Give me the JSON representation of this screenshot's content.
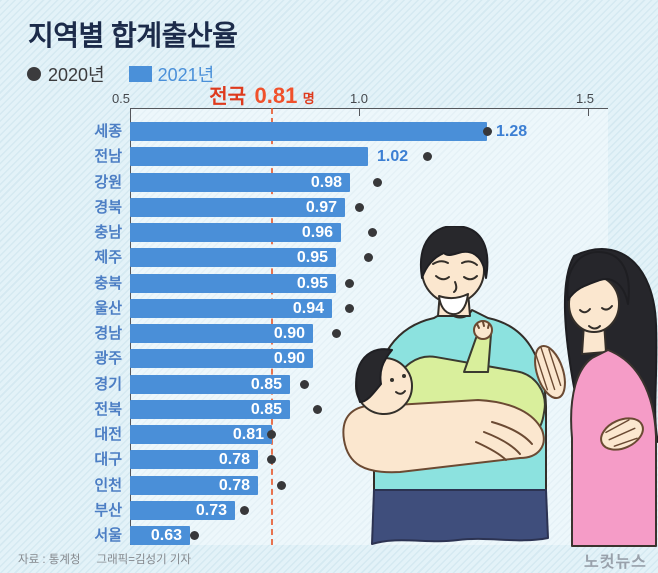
{
  "title": "지역별 합계출산율",
  "legend": {
    "y2020_label": "2020년",
    "y2021_label": "2021년"
  },
  "annotation": {
    "prefix": "전국",
    "value": "0.81",
    "unit": "명"
  },
  "axis": {
    "ticks": [
      "0.5",
      "1.0",
      "1.5"
    ],
    "min": 0.5,
    "max": 1.5
  },
  "footer": {
    "source": "자료 : 통계청",
    "credit": "그래픽=김성기 기자"
  },
  "logo": "노컷뉴스",
  "colors": {
    "bar_blue": "#4a8fd8",
    "dot_dark": "#38383a",
    "accent_red": "#e8401c",
    "title_navy": "#1c2b4a",
    "label_blue": "#4c7ec4",
    "background": "#e3f2f8"
  },
  "chart_data": {
    "type": "bar",
    "orientation": "horizontal",
    "title": "지역별 합계출산율",
    "categories": [
      "세종",
      "전남",
      "강원",
      "경북",
      "충남",
      "제주",
      "충북",
      "울산",
      "경남",
      "광주",
      "경기",
      "전북",
      "대전",
      "대구",
      "인천",
      "부산",
      "서울"
    ],
    "series": [
      {
        "name": "2021년",
        "style": "bar",
        "values": [
          1.28,
          1.02,
          0.98,
          0.97,
          0.96,
          0.95,
          0.95,
          0.94,
          0.9,
          0.9,
          0.85,
          0.85,
          0.81,
          0.78,
          0.78,
          0.73,
          0.63
        ]
      },
      {
        "name": "2020년",
        "style": "dot",
        "values": [
          1.28,
          1.15,
          1.04,
          1.0,
          1.03,
          1.02,
          0.98,
          0.98,
          0.95,
          null,
          0.88,
          0.91,
          0.81,
          0.81,
          0.83,
          0.75,
          0.64
        ]
      }
    ],
    "xlim": [
      0.5,
      1.5
    ],
    "grid": false,
    "legend_position": "top-left",
    "reference_line": {
      "value": 0.81,
      "label": "전국 0.81명"
    }
  }
}
